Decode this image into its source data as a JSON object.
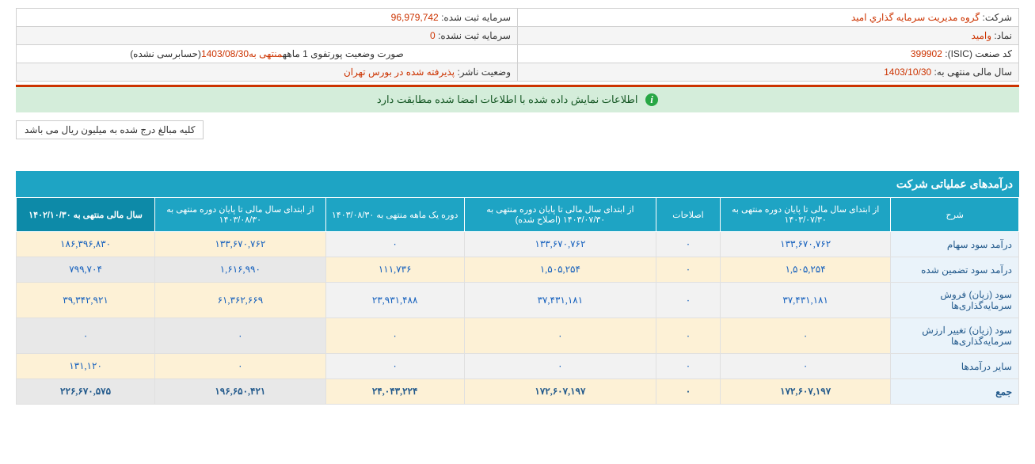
{
  "info": {
    "company_label": "شرکت:",
    "company_value": "گروه مديريت سرمايه گذاري اميد",
    "capital_label": "سرمایه ثبت شده:",
    "capital_value": "96,979,742",
    "symbol_label": "نماد:",
    "symbol_value": "واميد",
    "unreg_capital_label": "سرمایه ثبت نشده:",
    "unreg_capital_value": "0",
    "isic_label": "کد صنعت (ISIC):",
    "isic_value": "399902",
    "report_title_prefix": "صورت وضعیت پورتفوی 1 ماهه",
    "report_title_mid": "منتهی به",
    "report_title_date": "1403/08/30",
    "report_title_suffix": "(حسابرسی نشده)",
    "fy_label": "سال مالی منتهی به:",
    "fy_value": "1403/10/30",
    "pub_status_label": "وضعیت ناشر:",
    "pub_status_value": "پذيرفته شده در بورس تهران"
  },
  "notice": "اطلاعات نمایش داده شده با اطلاعات امضا شده مطابقت دارد",
  "note": "کلیه مبالغ درج شده به میلیون ریال می باشد",
  "section_title": "درآمدهای عملیاتی شرکت",
  "table": {
    "headers": [
      "شرح",
      "از ابتدای سال مالی تا پایان دوره منتهی به ۱۴۰۳/۰۷/۳۰",
      "اصلاحات",
      "از ابتدای سال مالی تا پایان دوره منتهی به ۱۴۰۳/۰۷/۳۰ (اصلاح شده)",
      "دوره یک ماهه منتهی به ۱۴۰۳/۰۸/۳۰",
      "از ابتدای سال مالی تا پایان دوره منتهی به ۱۴۰۳/۰۸/۳۰",
      "سال مالی منتهی به ۱۴۰۲/۱۰/۳۰"
    ],
    "rows": [
      {
        "desc": "درآمد سود سهام",
        "c1": "۱۳۳,۶۷۰,۷۶۲",
        "c2": "۰",
        "c3": "۱۳۳,۶۷۰,۷۶۲",
        "c4": "۰",
        "c5": "۱۳۳,۶۷۰,۷۶۲",
        "c6": "۱۸۶,۳۹۶,۸۳۰"
      },
      {
        "desc": "درآمد سود تضمین شده",
        "c1": "۱,۵۰۵,۲۵۴",
        "c2": "۰",
        "c3": "۱,۵۰۵,۲۵۴",
        "c4": "۱۱۱,۷۳۶",
        "c5": "۱,۶۱۶,۹۹۰",
        "c6": "۷۹۹,۷۰۴"
      },
      {
        "desc": "سود (زیان) فروش سرمایه‌گذاری‌ها",
        "c1": "۳۷,۴۳۱,۱۸۱",
        "c2": "۰",
        "c3": "۳۷,۴۳۱,۱۸۱",
        "c4": "۲۳,۹۳۱,۴۸۸",
        "c5": "۶۱,۳۶۲,۶۶۹",
        "c6": "۳۹,۳۴۲,۹۲۱"
      },
      {
        "desc": "سود (زیان) تغییر ارزش سرمایه‌گذاری‌ها",
        "c1": "۰",
        "c2": "۰",
        "c3": "۰",
        "c4": "۰",
        "c5": "۰",
        "c6": "۰"
      },
      {
        "desc": "سایر درآمدها",
        "c1": "۰",
        "c2": "۰",
        "c3": "۰",
        "c4": "۰",
        "c5": "۰",
        "c6": "۱۳۱,۱۲۰"
      }
    ],
    "total": {
      "desc": "جمع",
      "c1": "۱۷۲,۶۰۷,۱۹۷",
      "c2": "۰",
      "c3": "۱۷۲,۶۰۷,۱۹۷",
      "c4": "۲۴,۰۴۳,۲۲۴",
      "c5": "۱۹۶,۶۵۰,۴۲۱",
      "c6": "۲۲۶,۶۷۰,۵۷۵"
    }
  },
  "colors": {
    "header_bg": "#1ea4c4",
    "header_active_bg": "#0d8aa8",
    "row_alt_bg": "#fdf1d6",
    "notice_bg": "#d4edda",
    "red": "#cc3300"
  }
}
